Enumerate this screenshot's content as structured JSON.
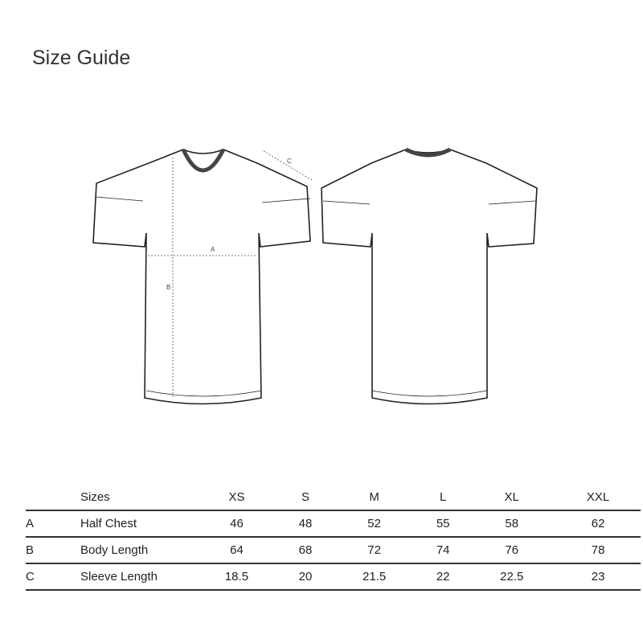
{
  "title": "Size Guide",
  "diagram_labels": {
    "a": "A",
    "b": "B",
    "c": "C"
  },
  "table": {
    "header": [
      "Sizes",
      "XS",
      "S",
      "M",
      "L",
      "XL",
      "XXL"
    ],
    "rows": [
      {
        "letter": "A",
        "name": "Half Chest",
        "values": [
          "46",
          "48",
          "52",
          "55",
          "58",
          "62"
        ]
      },
      {
        "letter": "B",
        "name": "Body Length",
        "values": [
          "64",
          "68",
          "72",
          "74",
          "76",
          "78"
        ]
      },
      {
        "letter": "C",
        "name": "Sleeve Length",
        "values": [
          "18.5",
          "20",
          "21.5",
          "22",
          "22.5",
          "23"
        ]
      }
    ]
  }
}
